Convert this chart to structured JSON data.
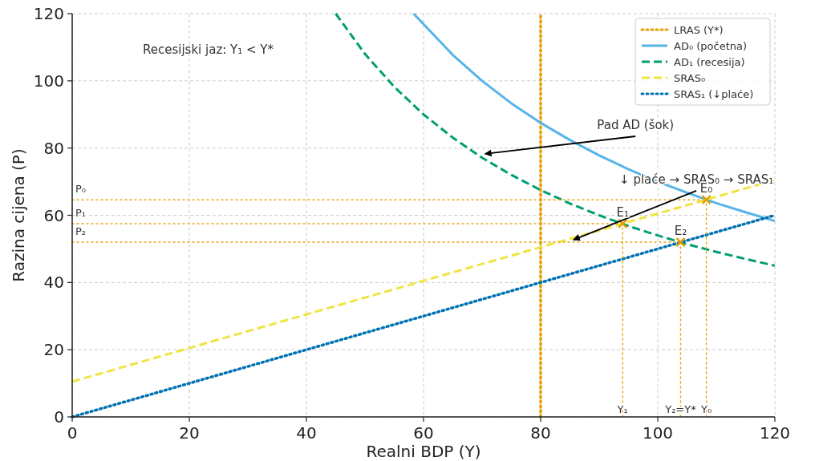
{
  "chart_data": {
    "type": "line",
    "xlabel": "Realni BDP (Y)",
    "ylabel": "Razina cijena (P)",
    "xlim": [
      0,
      120
    ],
    "ylim": [
      0,
      120
    ],
    "xticks": [
      0,
      20,
      40,
      60,
      80,
      100,
      120
    ],
    "yticks": [
      0,
      20,
      40,
      60,
      80,
      100,
      120
    ],
    "grid": true,
    "legend": "top right",
    "series": [
      {
        "name": "LRAS (Y*)",
        "color": "#e69f00",
        "line_style": "dotted",
        "x": [
          80,
          80
        ],
        "values": [
          0,
          120
        ]
      },
      {
        "name": "AD₀ (početna)",
        "color": "#56b4e9",
        "line_style": "solid",
        "x": [
          58.3,
          65,
          70,
          75,
          80,
          85,
          90,
          95,
          100,
          105,
          110,
          115,
          120
        ],
        "values": [
          120,
          107.7,
          100,
          93.3,
          87.5,
          82.4,
          77.8,
          73.7,
          70,
          66.7,
          63.6,
          60.9,
          58.3
        ]
      },
      {
        "name": "AD₁ (recesija)",
        "color": "#009e73",
        "line_style": "dashed",
        "x": [
          45,
          50,
          55,
          60,
          65,
          70,
          75,
          80,
          85,
          90,
          95,
          100,
          105,
          110,
          115,
          120
        ],
        "values": [
          120,
          108,
          98.2,
          90,
          83.1,
          77.1,
          72,
          67.5,
          63.5,
          60,
          56.8,
          54,
          51.4,
          49.1,
          47,
          45
        ]
      },
      {
        "name": "SRAS₀",
        "color": "#f0e442",
        "line_style": "dashed",
        "x": [
          0,
          120
        ],
        "values": [
          10.5,
          70.5
        ]
      },
      {
        "name": "SRAS₁ (↓plaće)",
        "color": "#0072b2",
        "line_style": "dotted",
        "x": [
          0,
          120
        ],
        "values": [
          0,
          60
        ]
      },
      {
        "type": "line",
        "color": "#e6a817",
        "line_style": "dotted",
        "x": [
          0,
          108.3
        ],
        "values": [
          64.6,
          64.6
        ]
      },
      {
        "type": "line",
        "color": "#e6a817",
        "line_style": "dotted",
        "x": [
          0,
          94
        ],
        "values": [
          57.5,
          57.5
        ]
      },
      {
        "type": "line",
        "color": "#e6a817",
        "line_style": "dotted",
        "x": [
          0,
          103.9
        ],
        "values": [
          52,
          52
        ]
      },
      {
        "type": "line",
        "color": "#e6a817",
        "line_style": "dotted",
        "x": [
          108.3,
          108.3
        ],
        "values": [
          0,
          64.6
        ]
      },
      {
        "type": "line",
        "color": "#e6a817",
        "line_style": "dotted",
        "x": [
          94,
          94
        ],
        "values": [
          0,
          57.5
        ]
      },
      {
        "type": "line",
        "color": "#e6a817",
        "line_style": "dotted",
        "x": [
          103.9,
          103.9
        ],
        "values": [
          0,
          52
        ]
      },
      {
        "type": "scatter",
        "color": "#e69f00",
        "marker": "cross",
        "x": [
          108.3,
          94,
          103.9
        ],
        "values": [
          64.6,
          57.5,
          52
        ]
      },
      {
        "type": "line",
        "color": "#000000",
        "line_style": "solid",
        "x": [
          96.2,
          70.5
        ],
        "values": [
          83.5,
          78.3
        ]
      },
      {
        "type": "line",
        "color": "#000000",
        "line_style": "solid",
        "x": [
          106.6,
          85.6
        ],
        "values": [
          67.3,
          52.7
        ]
      }
    ],
    "annotations": [
      "Recesijski jaz: Y₁ < Y*",
      {
        "text": "Pad AD (šok)",
        "x": 96.2,
        "y": 83.5
      },
      {
        "text": "↓ plaće → SRAS₀ → SRAS₁",
        "x": 106.6,
        "y": 67.3
      },
      {
        "text": "E₀",
        "x": 108.3,
        "y": 64.6
      },
      {
        "text": "E₁",
        "x": 94,
        "y": 57.5
      },
      {
        "text": "E₂",
        "x": 103.9,
        "y": 52
      },
      {
        "text": "P₀",
        "x": 0,
        "y": 64.6
      },
      {
        "text": "P₁",
        "x": 0,
        "y": 57.5
      },
      {
        "text": "P₂",
        "x": 0,
        "y": 52
      },
      {
        "text": "Y₁",
        "x": 94,
        "y": 0
      },
      {
        "text": "Y₂=Y*",
        "x": 103.9,
        "y": 0
      },
      {
        "text": "Y₀",
        "x": 108.3,
        "y": 0
      }
    ]
  }
}
